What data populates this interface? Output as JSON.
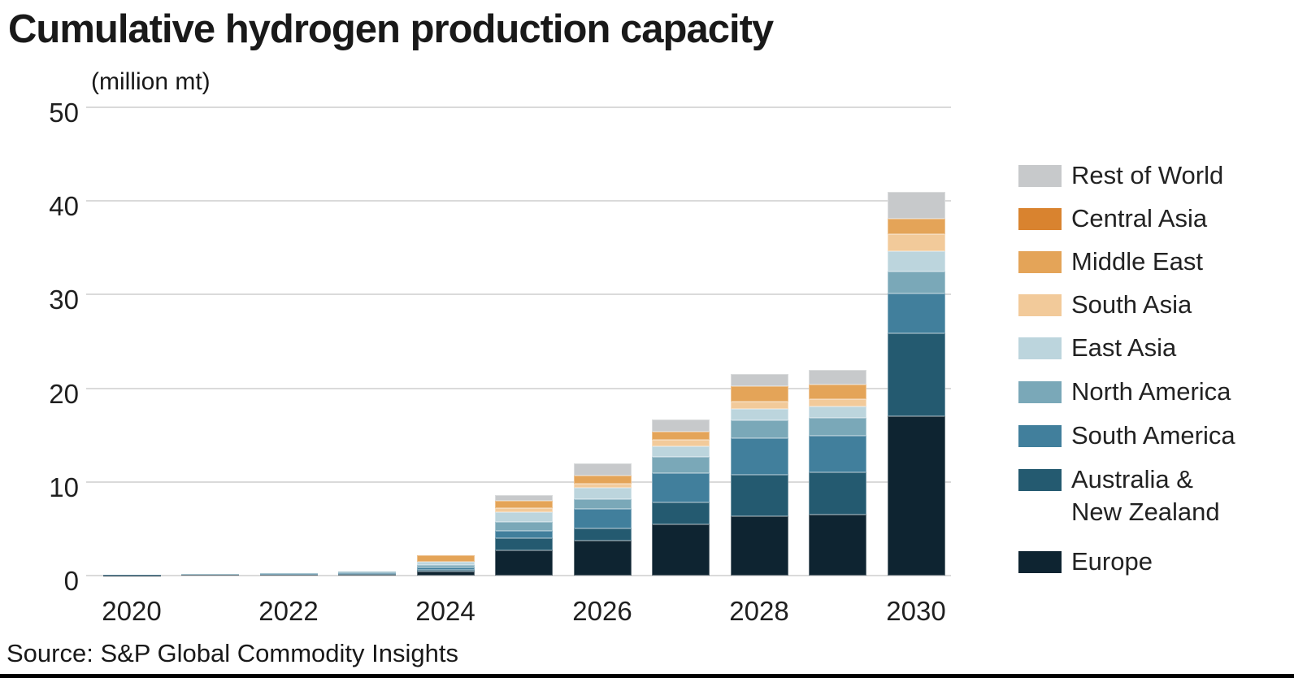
{
  "chart_data": {
    "type": "bar",
    "stacked": true,
    "title": "Cumulative hydrogen production capacity",
    "ylabel": "(million mt)",
    "source": "Source: S&P Global Commodity Insights",
    "categories": [
      "2020",
      "2021",
      "2022",
      "2023",
      "2024",
      "2025",
      "2026",
      "2027",
      "2028",
      "2029",
      "2030"
    ],
    "x_tick_labels": [
      "2020",
      "2022",
      "2024",
      "2026",
      "2028",
      "2030"
    ],
    "ylim": [
      0,
      50
    ],
    "yticks": [
      0,
      10,
      20,
      30,
      40,
      50
    ],
    "grid": true,
    "legend_position": "right",
    "series": [
      {
        "name": "Europe",
        "color": "#0e2431",
        "values": [
          0.02,
          0.05,
          0.06,
          0.1,
          0.4,
          2.7,
          3.7,
          5.5,
          6.3,
          6.5,
          17.0
        ]
      },
      {
        "name": "Australia & New Zealand",
        "color": "#245a70",
        "values": [
          0,
          0,
          0,
          0.05,
          0.2,
          1.3,
          1.3,
          2.3,
          4.5,
          4.5,
          8.9
        ]
      },
      {
        "name": "South America",
        "color": "#417f9c",
        "values": [
          0.04,
          0.08,
          0.1,
          0.15,
          0.3,
          0.8,
          2.1,
          3.1,
          3.9,
          3.9,
          4.2
        ]
      },
      {
        "name": "North America",
        "color": "#7aa8b8",
        "values": [
          0.04,
          0.07,
          0.09,
          0.1,
          0.25,
          0.9,
          1.1,
          1.8,
          1.9,
          1.9,
          2.4
        ]
      },
      {
        "name": "East Asia",
        "color": "#bcd5dd",
        "values": [
          0,
          0,
          0,
          0,
          0.3,
          1.1,
          1.2,
          1.1,
          1.2,
          1.3,
          2.1
        ]
      },
      {
        "name": "South Asia",
        "color": "#f2ca9a",
        "values": [
          0,
          0,
          0,
          0,
          0.05,
          0.4,
          0.4,
          0.7,
          0.8,
          0.7,
          1.9
        ]
      },
      {
        "name": "Middle East",
        "color": "#e4a458",
        "values": [
          0,
          0,
          0,
          0,
          0.7,
          0.8,
          0.9,
          0.9,
          1.6,
          1.6,
          1.6
        ]
      },
      {
        "name": "Central Asia",
        "color": "#d9832f",
        "values": [
          0,
          0,
          0,
          0,
          0,
          0,
          0,
          0,
          0,
          0,
          0
        ]
      },
      {
        "name": "Rest of World",
        "color": "#c7c9cb",
        "values": [
          0,
          0,
          0,
          0,
          0,
          0.6,
          1.3,
          1.3,
          1.3,
          1.6,
          2.9
        ]
      }
    ],
    "legend": [
      {
        "series": "Rest of World",
        "label": "Rest of World"
      },
      {
        "series": "Central Asia",
        "label": "Central Asia"
      },
      {
        "series": "Middle East",
        "label": "Middle East"
      },
      {
        "series": "South Asia",
        "label": "South Asia"
      },
      {
        "series": "East Asia",
        "label": "East Asia"
      },
      {
        "series": "North America",
        "label": "North America"
      },
      {
        "series": "South America",
        "label": "South America"
      },
      {
        "series": "Australia & New Zealand",
        "label": "Australia &\nNew Zealand"
      },
      {
        "series": "Europe",
        "label": "Europe"
      }
    ]
  }
}
